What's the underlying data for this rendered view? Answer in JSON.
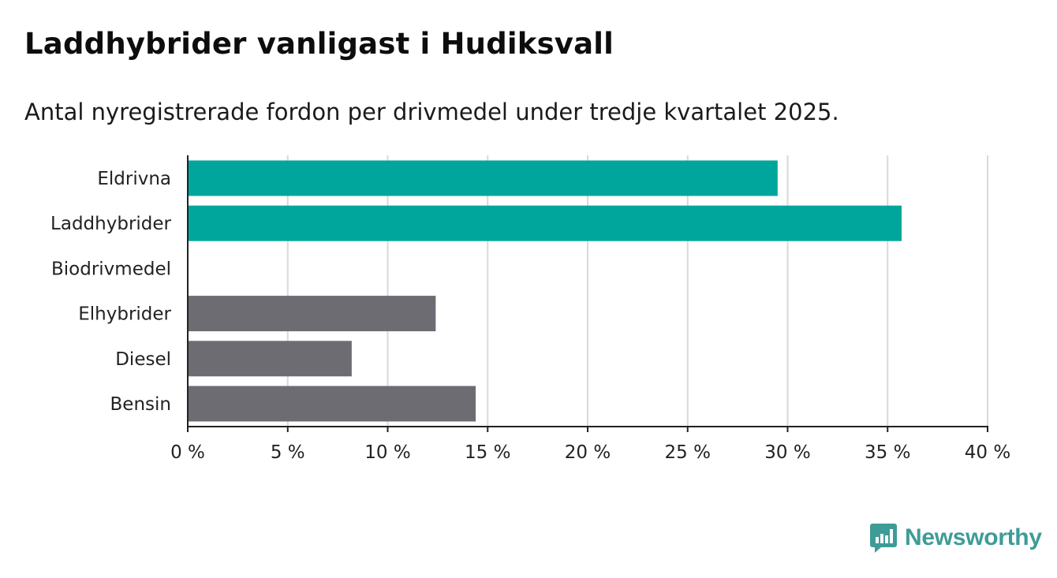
{
  "title": "Laddhybrider vanligast i Hudiksvall",
  "subtitle": "Antal nyregistrerade fordon per drivmedel under tredje kvartalet 2025.",
  "brand": {
    "name": "Newsworthy",
    "icon": "newsworthy-logo-icon",
    "color": "#3e9c97"
  },
  "chart_data": {
    "type": "bar",
    "orientation": "horizontal",
    "title": "Laddhybrider vanligast i Hudiksvall",
    "subtitle": "Antal nyregistrerade fordon per drivmedel under tredje kvartalet 2025.",
    "xlabel": "",
    "ylabel": "",
    "xlim": [
      0,
      40
    ],
    "x_ticks": [
      0,
      5,
      10,
      15,
      20,
      25,
      30,
      35,
      40
    ],
    "x_tick_labels": [
      "0 %",
      "5 %",
      "10 %",
      "15 %",
      "20 %",
      "25 %",
      "30 %",
      "35 %",
      "40 %"
    ],
    "grid": true,
    "categories": [
      "Eldrivna",
      "Laddhybrider",
      "Biodrivmedel",
      "Elhybrider",
      "Diesel",
      "Bensin"
    ],
    "values": [
      29.5,
      35.7,
      0,
      12.4,
      8.2,
      14.4
    ],
    "unit": "%",
    "colors": [
      "#00a69c",
      "#00a69c",
      "#00a69c",
      "#6d6c73",
      "#6d6c73",
      "#6d6c73"
    ],
    "gridline_color": "#d9d9d9",
    "axis_color": "#222222"
  }
}
